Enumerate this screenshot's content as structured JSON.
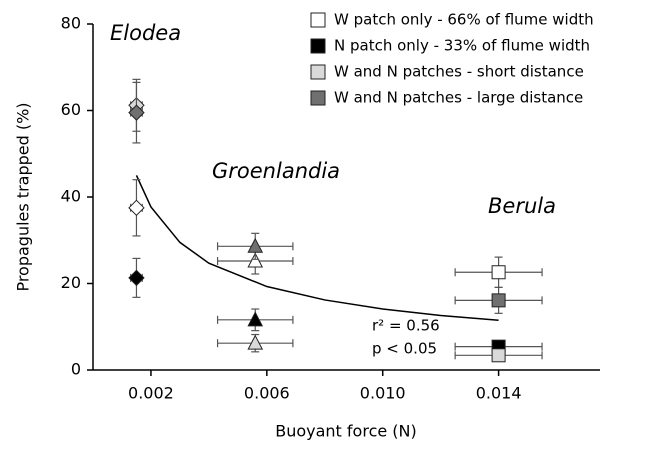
{
  "chart_data": {
    "type": "scatter",
    "xlabel": "Buoyant force (N)",
    "ylabel": "Propagules trapped (%)",
    "x": [
      0.0015,
      0.0056,
      0.014
    ],
    "markers": [
      "diamond",
      "triangle",
      "square"
    ],
    "group_labels": [
      "Elodea",
      "Groenlandia",
      "Berula"
    ],
    "series": [
      {
        "name": "W patch only - 66% of flume width",
        "color": "#ffffff",
        "values": [
          37.5,
          25.2,
          22.6
        ],
        "errors": [
          6.5,
          3,
          3.5
        ],
        "x_errors": [
          0.0002,
          0.0013,
          0.0015
        ]
      },
      {
        "name": "N patch only - 33% of flume width",
        "color": "#000000",
        "values": [
          21.3,
          11.6,
          5.4
        ],
        "errors": [
          4.5,
          2.5,
          1
        ],
        "x_errors": [
          0.0002,
          0.0013,
          0.0015
        ]
      },
      {
        "name": "W and N patches - short distance",
        "color": "#d9d9d9",
        "values": [
          61.2,
          6.2,
          3.4
        ],
        "errors": [
          6,
          2,
          1
        ],
        "x_errors": [
          0.0002,
          0.0013,
          0.0015
        ]
      },
      {
        "name": "W and N patches - large distance",
        "color": "#707070",
        "values": [
          59.5,
          28.6,
          16.1
        ],
        "errors": [
          7,
          3,
          3
        ],
        "x_errors": [
          0.0002,
          0.0013,
          0.0015
        ]
      }
    ],
    "fit": {
      "x": [
        0.0015,
        0.002,
        0.003,
        0.004,
        0.006,
        0.008,
        0.01,
        0.012,
        0.014
      ],
      "values": [
        45,
        37.7,
        29.5,
        24.7,
        19.3,
        16.2,
        14.1,
        12.6,
        11.5
      ]
    },
    "annotations": [
      "r² = 0.56",
      "p < 0.05"
    ],
    "xlim": [
      0,
      0.0175
    ],
    "ylim": [
      0,
      80
    ],
    "xticks": [
      0.002,
      0.006,
      {
        "value": 0.01,
        "label": "0.010"
      },
      0.014
    ],
    "yticks": [
      0,
      20,
      40,
      60,
      80
    ],
    "legend": "upper right"
  }
}
